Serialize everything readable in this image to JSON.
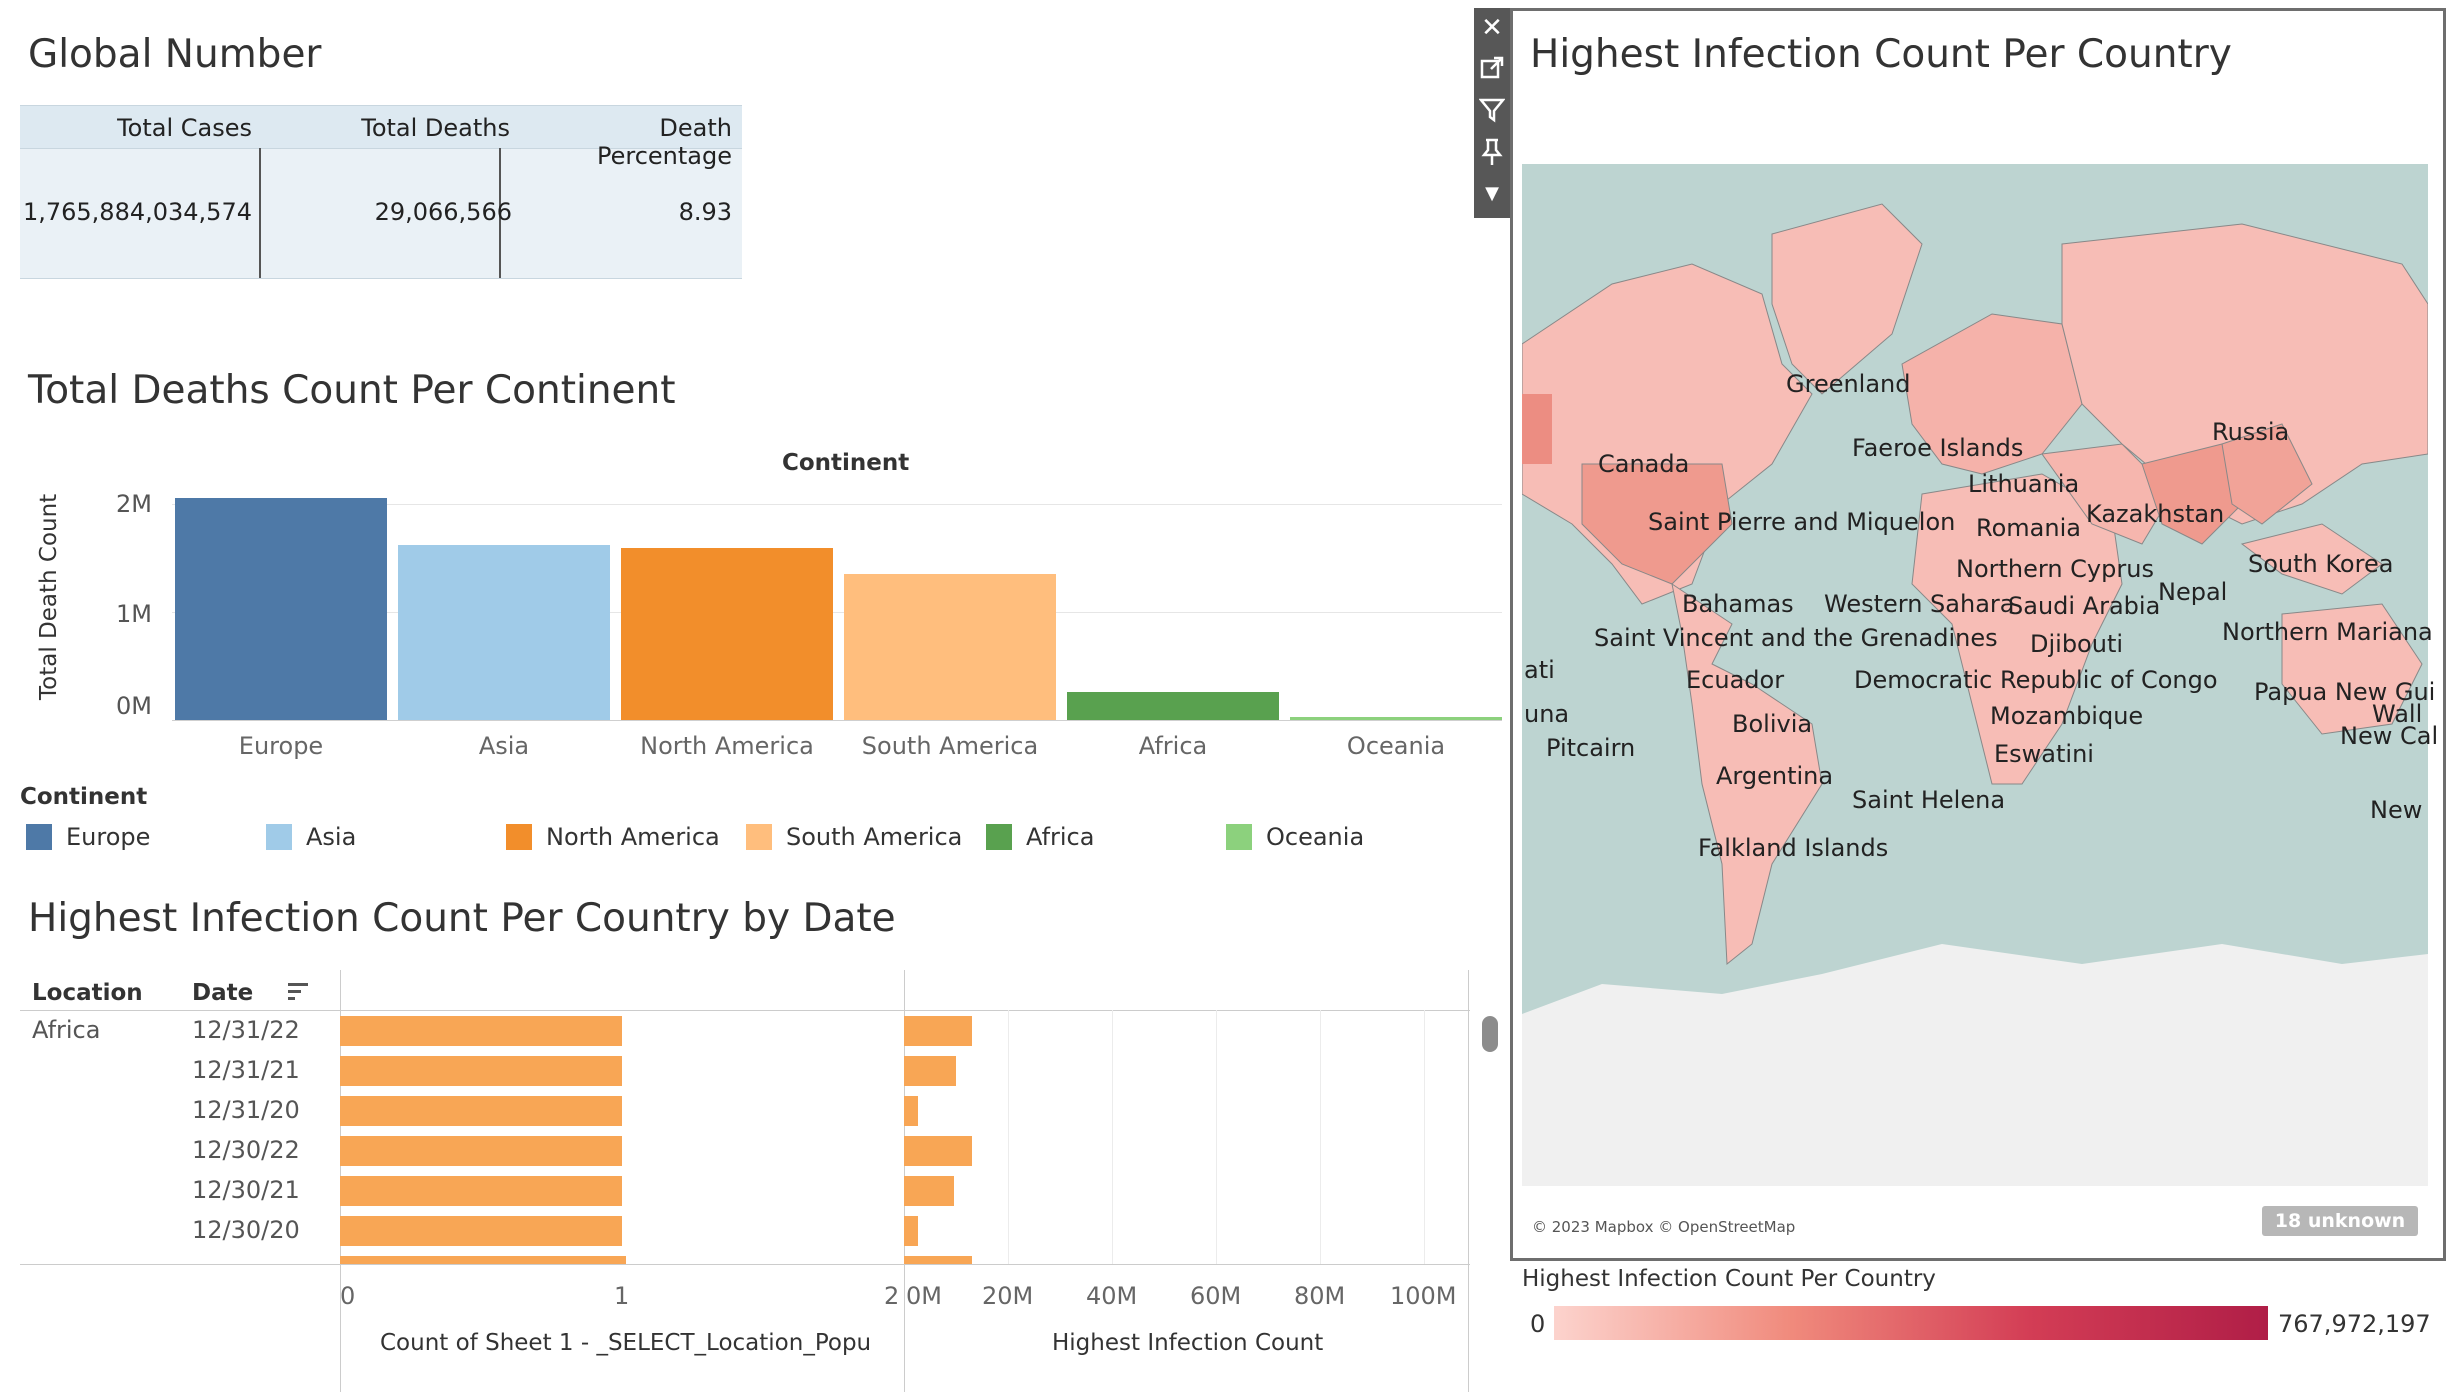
{
  "global": {
    "title": "Global Number",
    "headers": [
      "Total Cases",
      "Total Deaths",
      "Death Percentage"
    ],
    "values": [
      "1,765,884,034,574",
      "29,066,566",
      "8.93"
    ]
  },
  "continent_chart": {
    "title": "Total Deaths Count Per Continent",
    "legend_title": "Continent",
    "chart_data": {
      "type": "bar",
      "title": "Total Deaths Count Per Continent",
      "xlabel": "Continent",
      "ylabel": "Total Death Count",
      "categories": [
        "Europe",
        "Asia",
        "North America",
        "South America",
        "Africa",
        "Oceania"
      ],
      "values": [
        2060000,
        1620000,
        1590000,
        1350000,
        260000,
        25000
      ],
      "yticks": [
        "2M",
        "1M",
        "0M"
      ],
      "ylim": [
        0,
        2100000
      ],
      "colors": [
        "#4e79a7",
        "#a0cbe8",
        "#f28e2b",
        "#ffbe7d",
        "#59a14f",
        "#8cd17d"
      ]
    }
  },
  "country_date": {
    "title": "Highest Infection Count Per Country by Date",
    "col_location": "Location",
    "col_date": "Date",
    "location": "Africa",
    "rows": [
      {
        "date": "12/31/22",
        "count": 1,
        "infection": 13000000
      },
      {
        "date": "12/31/21",
        "count": 1,
        "infection": 10000000
      },
      {
        "date": "12/31/20",
        "count": 1,
        "infection": 2700000
      },
      {
        "date": "12/30/22",
        "count": 1,
        "infection": 13000000
      },
      {
        "date": "12/30/21",
        "count": 1,
        "infection": 9700000
      },
      {
        "date": "12/30/20",
        "count": 1,
        "infection": 2700000
      }
    ],
    "count_axis": {
      "label": "Count of Sheet 1 - _SELECT_Location_Popu",
      "ticks": [
        "0",
        "1",
        "2"
      ]
    },
    "infection_axis": {
      "label": "Highest Infection Count",
      "ticks": [
        "0M",
        "20M",
        "40M",
        "60M",
        "80M",
        "100M"
      ]
    }
  },
  "map": {
    "title": "Highest Infection Count Per Country",
    "attribution": "© 2023 Mapbox © OpenStreetMap",
    "unknown": "18 unknown",
    "legend_title": "Highest Infection Count Per Country",
    "legend_min": "0",
    "legend_max": "767,972,197",
    "labels": [
      "Greenland",
      "Russia",
      "Faeroe Islands",
      "Canada",
      "Lithuania",
      "Kazakhstan",
      "Saint Pierre and Miquelon",
      "Romania",
      "Northern Cyprus",
      "South Korea",
      "Nepal",
      "Bahamas",
      "Western Sahara",
      "Saudi Arabia",
      "Saint Vincent and the Grenadines",
      "Djibouti",
      "Northern Mariana",
      "ati",
      "Ecuador",
      "Democratic Republic of Congo",
      "Papua New Gui",
      "una",
      "Bolivia",
      "Mozambique",
      "Wall",
      "Pitcairn",
      "Eswatini",
      "New Cal",
      "Argentina",
      "Saint Helena",
      "New",
      "Falkland Islands"
    ]
  }
}
